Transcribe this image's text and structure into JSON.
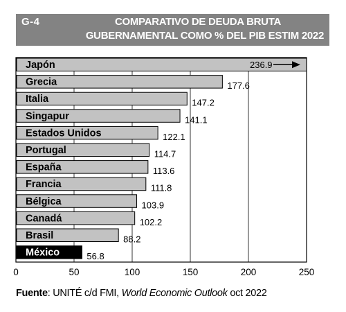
{
  "header": {
    "code": "G-4",
    "title_line1": "COMPARATIVO DE DEUDA BRUTA",
    "title_line2": "GUBERNAMENTAL COMO % DEL PIB ESTIM 2022"
  },
  "source": {
    "label": "Fuente",
    "text_before": ": UNITÉ c/d FMI, ",
    "publication": "World Economic Outlook",
    "text_after": " oct 2022"
  },
  "colors": {
    "header_bg": "#838383",
    "bar": "#c2c2c2",
    "highlight_bar": "#000000",
    "arrow": "#000000"
  },
  "chart_data": {
    "type": "bar",
    "orientation": "horizontal",
    "xlim": [
      0,
      250
    ],
    "x_ticks": [
      "0",
      "50",
      "100",
      "150",
      "200",
      "250"
    ],
    "grid": "vertical",
    "categories": [
      "Japón",
      "Grecia",
      "Italia",
      "Singapur",
      "Estados Unidos",
      "Portugal",
      "España",
      "Francia",
      "Bélgica",
      "Canadá",
      "Brasil",
      "México"
    ],
    "values": [
      236.9,
      177.6,
      147.2,
      141.1,
      122.1,
      114.7,
      113.6,
      111.8,
      103.9,
      102.2,
      88.2,
      56.8
    ],
    "value_labels": [
      "236.9",
      "177.6",
      "147.2",
      "141.1",
      "122.1",
      "114.7",
      "113.6",
      "111.8",
      "103.9",
      "102.2",
      "88.2",
      "56.8"
    ],
    "highlighted_category": "México",
    "axis_break_category": "Japón"
  }
}
